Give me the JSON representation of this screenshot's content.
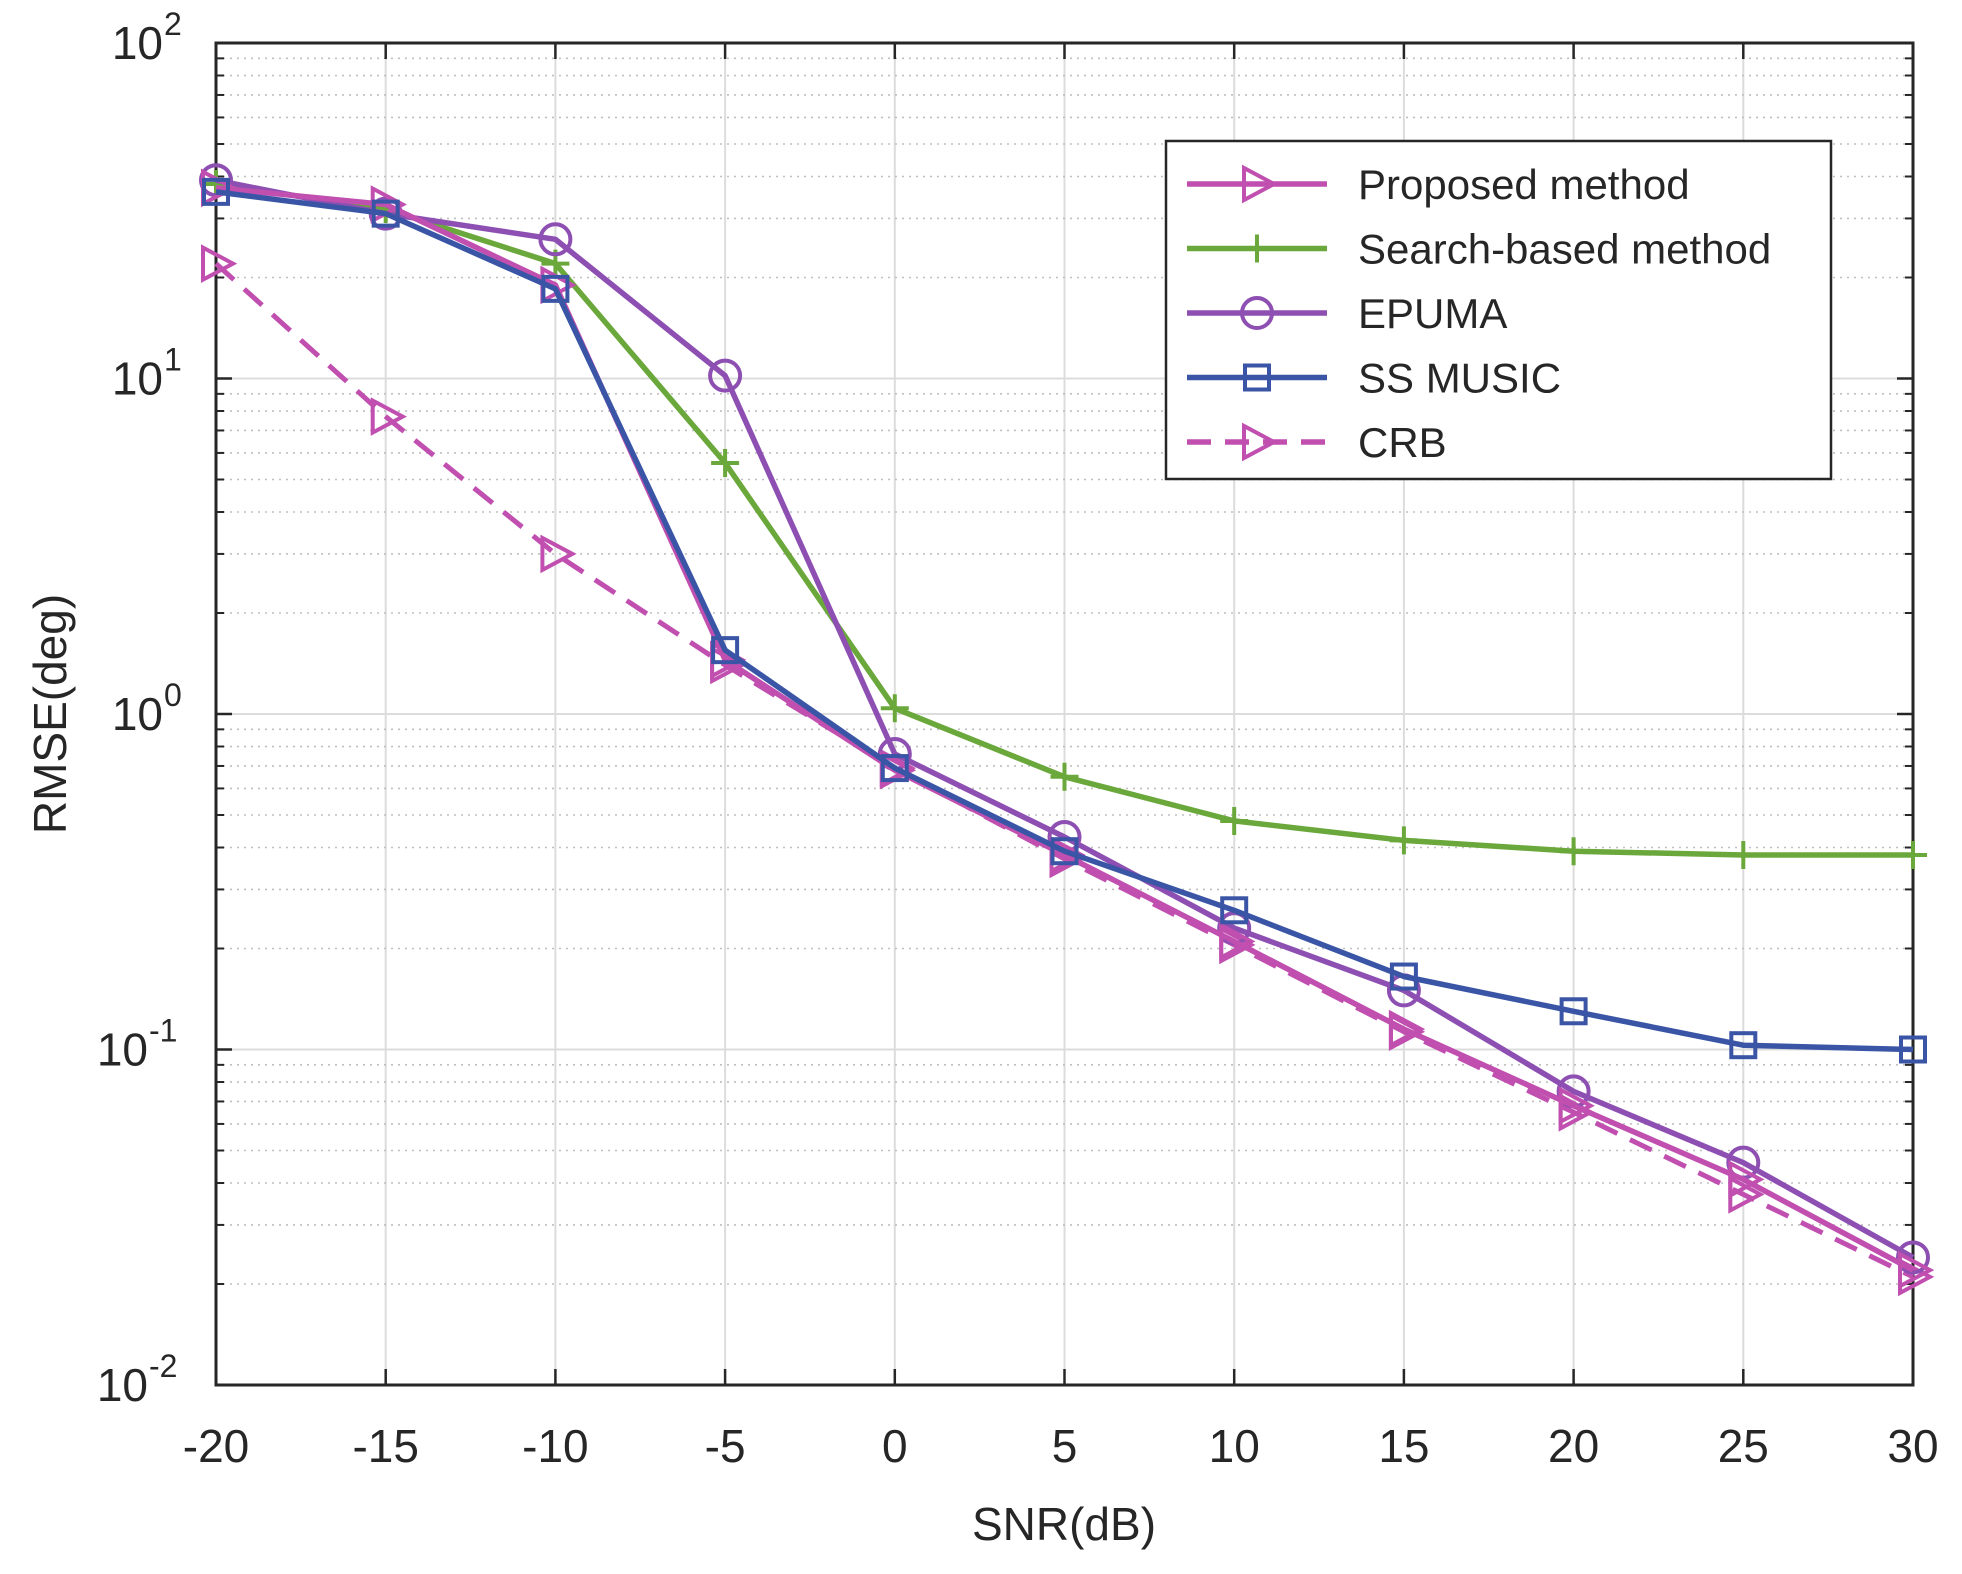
{
  "chart_data": {
    "type": "line",
    "title": "",
    "xlabel": "SNR(dB)",
    "ylabel": "RMSE(deg)",
    "yscale": "log",
    "xlim": [
      -20,
      30
    ],
    "ylim": [
      0.01,
      100
    ],
    "grid": true,
    "legend_position": "top-right",
    "x": [
      -20,
      -15,
      -10,
      -5,
      0,
      5,
      10,
      15,
      20,
      25,
      30
    ],
    "x_tick_labels": [
      "-20",
      "-15",
      "-10",
      "-5",
      "0",
      "5",
      "10",
      "15",
      "20",
      "25",
      "30"
    ],
    "y_ticks": [
      {
        "value": 0.01,
        "base": "10",
        "exp": "-2"
      },
      {
        "value": 0.1,
        "base": "10",
        "exp": "-1"
      },
      {
        "value": 1,
        "base": "10",
        "exp": "0"
      },
      {
        "value": 10,
        "base": "10",
        "exp": "1"
      },
      {
        "value": 100,
        "base": "10",
        "exp": "2"
      }
    ],
    "series": [
      {
        "name": "Proposed method",
        "color": "#c04fb0",
        "marker": "triangle-right",
        "dash": "solid",
        "values": [
          37,
          33,
          19,
          1.45,
          0.68,
          0.38,
          0.21,
          0.115,
          0.068,
          0.041,
          0.022
        ]
      },
      {
        "name": "Search-based method",
        "color": "#6aa83b",
        "marker": "plus",
        "dash": "solid",
        "values": [
          38,
          32,
          22,
          5.6,
          1.04,
          0.65,
          0.48,
          0.42,
          0.39,
          0.38,
          0.38
        ]
      },
      {
        "name": "EPUMA",
        "color": "#8e4fb2",
        "marker": "circle",
        "dash": "solid",
        "values": [
          39,
          31,
          26,
          10.2,
          0.76,
          0.43,
          0.23,
          0.15,
          0.075,
          0.046,
          0.024
        ]
      },
      {
        "name": "SS MUSIC",
        "color": "#3a55a6",
        "marker": "square",
        "dash": "solid",
        "values": [
          36,
          31,
          18.5,
          1.55,
          0.69,
          0.39,
          0.26,
          0.165,
          0.13,
          0.103,
          0.1
        ]
      },
      {
        "name": "CRB",
        "color": "#c04fb0",
        "marker": "triangle-right-open",
        "dash": "dashed",
        "values": [
          22,
          7.7,
          3.0,
          1.4,
          0.69,
          0.37,
          0.205,
          0.113,
          0.065,
          0.037,
          0.021
        ]
      }
    ]
  }
}
